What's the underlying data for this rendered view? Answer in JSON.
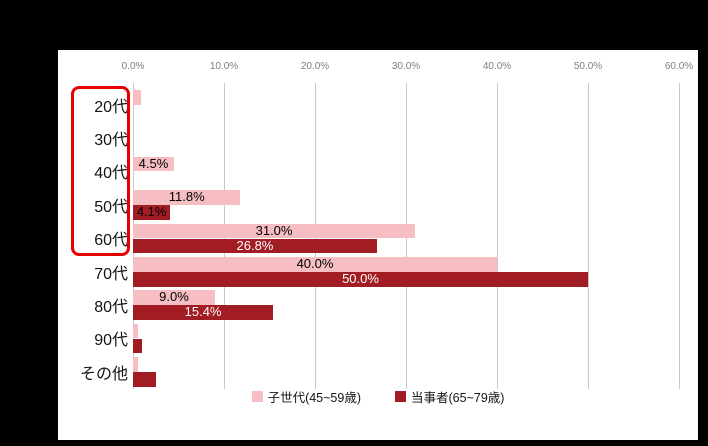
{
  "chart_data": {
    "type": "bar",
    "orientation": "horizontal",
    "title": "",
    "categories": [
      "20代",
      "30代",
      "40代",
      "50代",
      "60代",
      "70代",
      "80代",
      "90代",
      "その他"
    ],
    "series": [
      {
        "name": "子世代(45~59歳)",
        "color": "#f6bdc3",
        "values": [
          0.9,
          0,
          4.5,
          11.8,
          31.0,
          40.0,
          9.0,
          0.5,
          0.6
        ],
        "labels": [
          "",
          "",
          "4.5%",
          "11.8%",
          "31.0%",
          "40.0%",
          "9.0%",
          "",
          ""
        ]
      },
      {
        "name": "当事者(65~79歳)",
        "color": "#a21c24",
        "values": [
          0,
          0,
          0,
          4.1,
          26.8,
          50.0,
          15.4,
          1.0,
          2.5
        ],
        "labels": [
          "",
          "",
          "",
          "4.1%",
          "26.8%",
          "50.0%",
          "15.4%",
          "",
          ""
        ]
      }
    ],
    "x_axis": {
      "ticks": [
        "0.0%",
        "10.0%",
        "20.0%",
        "30.0%",
        "40.0%",
        "50.0%",
        "60.0%"
      ],
      "min": 0,
      "max": 60,
      "grid": true,
      "position": "top"
    },
    "highlight": {
      "categories": [
        "20代",
        "30代",
        "40代",
        "50代",
        "60代"
      ],
      "color": "#e60000"
    },
    "legend_position": "bottom"
  },
  "legend": {
    "items": [
      {
        "label": "子世代(45~59歳)",
        "color": "#f6bdc3"
      },
      {
        "label": "当事者(65~79歳)",
        "color": "#a21c24"
      }
    ]
  }
}
